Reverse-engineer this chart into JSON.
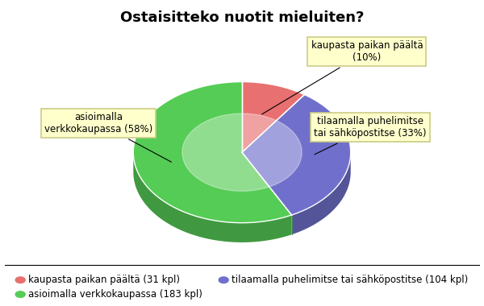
{
  "title": "Ostaisitteko nuotit mieluiten?",
  "slices": [
    {
      "label": "kaupasta paikan päältä",
      "value": 31,
      "pct": 10,
      "color": "#e87070"
    },
    {
      "label": "tilaamalla puhelimitse tai sähköpostitse",
      "value": 104,
      "pct": 33,
      "color": "#7070cc"
    },
    {
      "label": "asioimalla verkkokaupassa",
      "value": 183,
      "pct": 58,
      "color": "#55cc55"
    }
  ],
  "legend_items": [
    {
      "label": "kaupasta paikan päältä (31 kpl)",
      "color": "#e87070"
    },
    {
      "label": "tilaamalla puhelimitse tai sähköpostitse (104 kpl)",
      "color": "#7070cc"
    },
    {
      "label": "asioimalla verkkokaupassa (183 kpl)",
      "color": "#55cc55"
    }
  ],
  "annotation_box_color": "#ffffcc",
  "annotation_box_edge": "#cccc88",
  "background_color": "#ffffff",
  "title_fontsize": 13,
  "legend_fontsize": 8.5,
  "annot_fontsize": 8.5
}
